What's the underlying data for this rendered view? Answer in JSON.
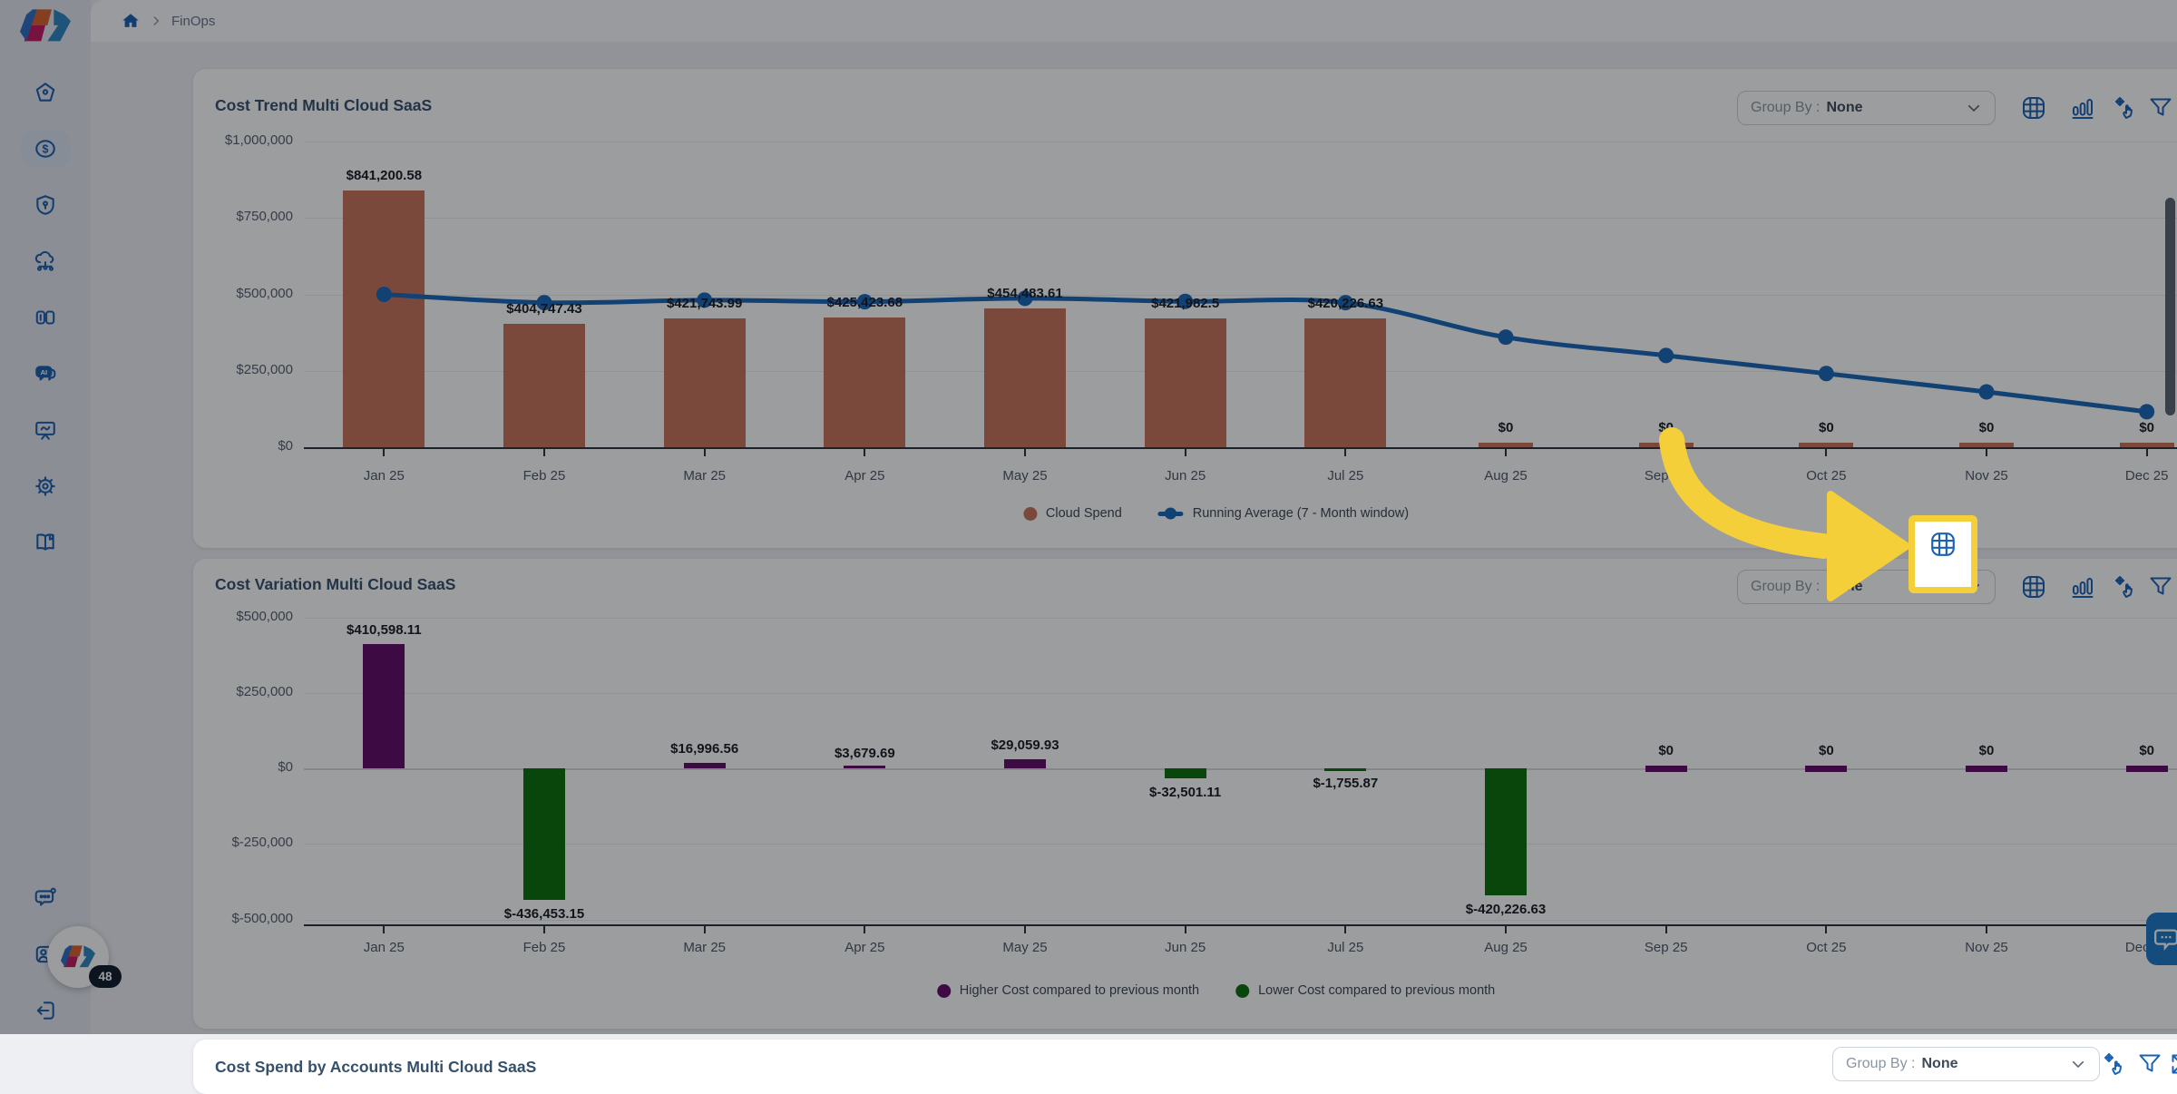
{
  "topbar": {
    "breadcrumb": "FinOps"
  },
  "sidebar": {
    "items": [
      "home",
      "cost",
      "security",
      "cloud-resources",
      "compare",
      "ai-assistant",
      "reports",
      "settings",
      "docs"
    ],
    "bottom_items": [
      "feedback",
      "profile",
      "logout"
    ],
    "active_item": "cost"
  },
  "cards": [
    {
      "title": "Cost Trend Multi Cloud SaaS",
      "group_by_label": "Group By :",
      "group_by_value": "None",
      "toolbar_icons": [
        "table-view",
        "bar-view",
        "pan",
        "filter",
        "expand",
        "more"
      ]
    },
    {
      "title": "Cost Variation Multi Cloud SaaS",
      "group_by_label": "Group By :",
      "group_by_value": "None",
      "toolbar_icons": [
        "table-view",
        "bar-view",
        "pan",
        "filter",
        "expand",
        "more"
      ]
    },
    {
      "title": "Cost Spend by Accounts Multi Cloud SaaS",
      "group_by_label": "Group By :",
      "group_by_value": "None",
      "toolbar_icons": [
        "pan",
        "filter",
        "expand",
        "more"
      ]
    }
  ],
  "chart_data": [
    {
      "type": "bar",
      "title": "Cost Trend Multi Cloud SaaS",
      "categories": [
        "Jan 25",
        "Feb 25",
        "Mar 25",
        "Apr 25",
        "May 25",
        "Jun 25",
        "Jul 25",
        "Aug 25",
        "Sep 25",
        "Oct 25",
        "Nov 25",
        "Dec 25"
      ],
      "series": [
        {
          "name": "Cloud Spend",
          "type": "bar",
          "color": "#C7735A",
          "values": [
            841200.58,
            404747.43,
            421743.99,
            425423.68,
            454483.61,
            421982.5,
            420226.63,
            0,
            0,
            0,
            0,
            0
          ],
          "labels": [
            "$841,200.58",
            "$404,747.43",
            "$421,743.99",
            "$425,423.68",
            "$454,483.61",
            "$421,982.5",
            "$420,226.63",
            "$0",
            "$0",
            "$0",
            "$0",
            "$0"
          ]
        },
        {
          "name": "Running Average (7 - Month window)",
          "type": "line",
          "color": "#1A66B8",
          "values": [
            500000,
            473000,
            481000,
            476000,
            487000,
            477000,
            473000,
            360000,
            300000,
            241000,
            181000,
            116000
          ]
        }
      ],
      "xlabel": "",
      "ylabel": "",
      "ylim": [
        0,
        1000000
      ],
      "y_ticks": [
        {
          "label": "$1,000,000",
          "value": 1000000
        },
        {
          "label": "$750,000",
          "value": 750000
        },
        {
          "label": "$500,000",
          "value": 500000
        },
        {
          "label": "$250,000",
          "value": 250000
        },
        {
          "label": "$0",
          "value": 0
        }
      ],
      "grid": true,
      "legend_position": "bottom",
      "legend": [
        {
          "label": "Cloud Spend",
          "marker": "dot",
          "color": "#C7735A"
        },
        {
          "label": "Running Average (7 - Month window)",
          "marker": "line-dot",
          "color": "#1A66B8"
        }
      ]
    },
    {
      "type": "bar",
      "title": "Cost Variation Multi Cloud SaaS",
      "categories": [
        "Jan 25",
        "Feb 25",
        "Mar 25",
        "Apr 25",
        "May 25",
        "Jun 25",
        "Jul 25",
        "Aug 25",
        "Sep 25",
        "Oct 25",
        "Nov 25",
        "Dec 25"
      ],
      "values": [
        410598.11,
        -436453.15,
        16996.56,
        3679.69,
        29059.93,
        -32501.11,
        -1755.87,
        -420226.63,
        0,
        0,
        0,
        0
      ],
      "labels": [
        "$410,598.11",
        "$-436,453.15",
        "$16,996.56",
        "$3,679.69",
        "$29,059.93",
        "$-32,501.11",
        "$-1,755.87",
        "$-420,226.63",
        "$0",
        "$0",
        "$0",
        "$0"
      ],
      "positive_color": "#630A66",
      "negative_color": "#0A6E0A",
      "zero_color": "#630A66",
      "xlabel": "",
      "ylabel": "",
      "ylim": [
        -500000,
        500000
      ],
      "y_ticks": [
        {
          "label": "$500,000",
          "value": 500000
        },
        {
          "label": "$250,000",
          "value": 250000
        },
        {
          "label": "$0",
          "value": 0
        },
        {
          "label": "$-250,000",
          "value": -250000
        },
        {
          "label": "$-500,000",
          "value": -500000
        }
      ],
      "grid": true,
      "legend_position": "bottom",
      "legend": [
        {
          "label": "Higher Cost compared to previous month",
          "marker": "dot",
          "color": "#630A66"
        },
        {
          "label": "Lower Cost compared to previous month",
          "marker": "dot",
          "color": "#0A6E0A"
        }
      ]
    }
  ],
  "annotation": {
    "tour_badge": "48",
    "highlighted_icon": "table-view-icon"
  },
  "colors": {
    "accent_blue": "#1b62b5",
    "highlight_yellow": "#F5CF3A",
    "bar_brown": "#C7735A",
    "line_blue": "#1A66B8",
    "purple": "#630A66",
    "green": "#0A6E0A"
  }
}
